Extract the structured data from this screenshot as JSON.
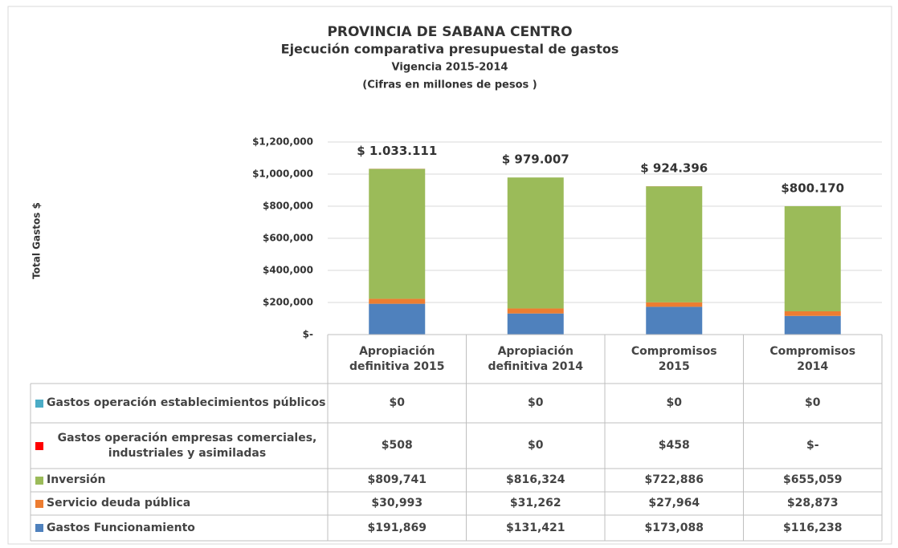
{
  "chart_data": {
    "type": "stacked_bar",
    "title": "PROVINCIA DE SABANA CENTRO",
    "subtitles": [
      "Ejecución comparativa presupuestal de gastos",
      "Vigencia 2015-2014",
      "(Cifras en millones de pesos )"
    ],
    "y_label": "Total Gastos $",
    "categories": [
      "Apropiación definitiva 2015",
      "Apropiación definitiva 2014",
      "Compromisos 2015",
      "Compromisos 2014"
    ],
    "series": [
      {
        "name": "Gastos Funcionamiento",
        "color": "#4f81bd",
        "values": [
          191869,
          131421,
          173088,
          116238
        ],
        "value_labels": [
          "$191,869",
          "$131,421",
          "$173,088",
          "$116,238"
        ]
      },
      {
        "name": "Servicio deuda pública",
        "color": "#ed7d31",
        "values": [
          30993,
          31262,
          27964,
          28873
        ],
        "value_labels": [
          "$30,993",
          "$31,262",
          "$27,964",
          "$28,873"
        ]
      },
      {
        "name": "Inversión",
        "color": "#9bbb59",
        "values": [
          809741,
          816324,
          722886,
          655059
        ],
        "value_labels": [
          "$809,741",
          "$816,324",
          "$722,886",
          "$655,059"
        ]
      },
      {
        "name": "Gastos operación empresas comerciales, industriales y asimiladas",
        "color": "#ff0000",
        "values": [
          508,
          0,
          458,
          0
        ],
        "value_labels": [
          "$508",
          "$0",
          "$458",
          "$-"
        ]
      },
      {
        "name": "Gastos operación establecimientos públicos",
        "color": "#4bacc6",
        "values": [
          0,
          0,
          0,
          0
        ],
        "value_labels": [
          "$0",
          "$0",
          "$0",
          "$0"
        ]
      }
    ],
    "totals": {
      "values": [
        1033111,
        979007,
        924396,
        800170
      ],
      "value_labels": [
        "$ 1.033.111",
        "$ 979.007",
        "$ 924.396",
        "$800.170"
      ]
    },
    "ylim": [
      0,
      1200000
    ],
    "yticks": [
      {
        "value": 0,
        "label": "$-"
      },
      {
        "value": 200000,
        "label": "$200,000"
      },
      {
        "value": 400000,
        "label": "$400,000"
      },
      {
        "value": 600000,
        "label": "$600,000"
      },
      {
        "value": 800000,
        "label": "$800,000"
      },
      {
        "value": 1000000,
        "label": "$1,000,000"
      },
      {
        "value": 1200000,
        "label": "$1,200,000"
      }
    ],
    "grid": true
  }
}
